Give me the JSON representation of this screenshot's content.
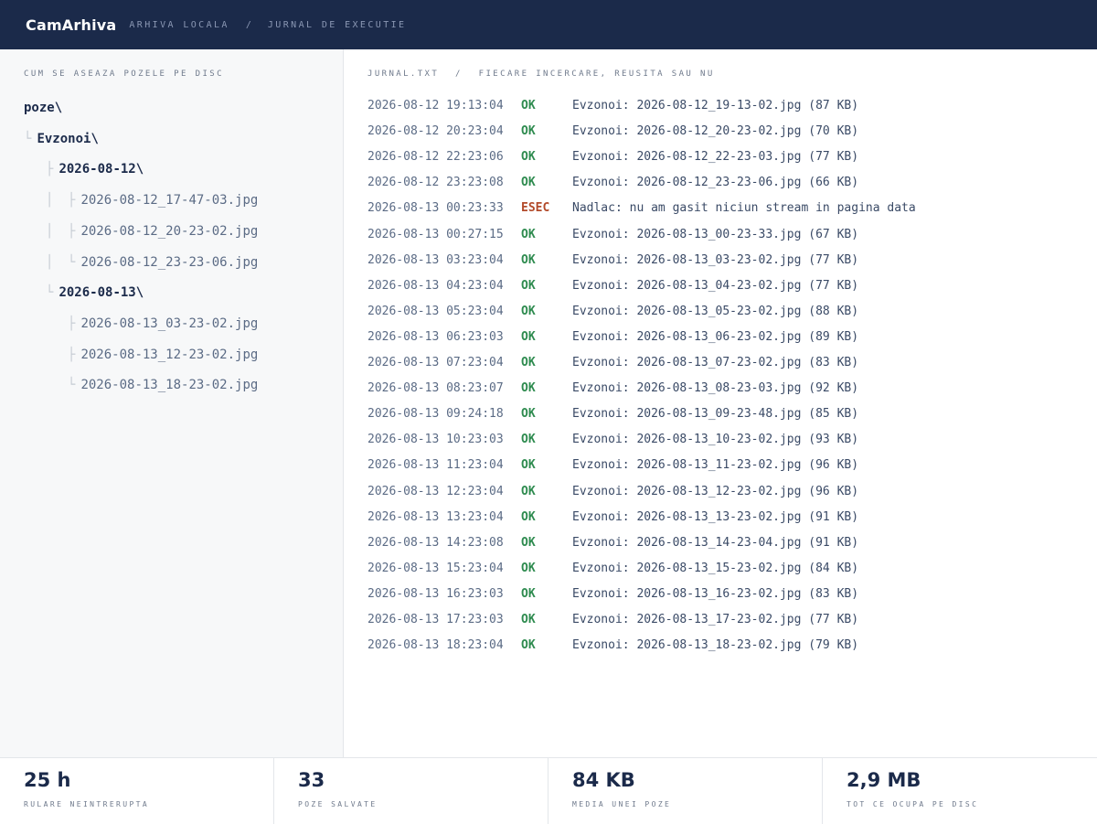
{
  "header": {
    "brand": "CamArhiva",
    "crumb1": "ARHIVA LOCALA",
    "separator": "/",
    "crumb2": "JURNAL DE EXECUTIE"
  },
  "sidebar": {
    "title": "CUM SE ASEAZA POZELE PE DISC",
    "tree": {
      "root": "poze\\",
      "folder": "Evzonoi\\",
      "dates": [
        {
          "label": "2026-08-12\\",
          "files": [
            "2026-08-12_17-47-03.jpg",
            "2026-08-12_20-23-02.jpg",
            "2026-08-12_23-23-06.jpg"
          ]
        },
        {
          "label": "2026-08-13\\",
          "files": [
            "2026-08-13_03-23-02.jpg",
            "2026-08-13_12-23-02.jpg",
            "2026-08-13_18-23-02.jpg"
          ]
        }
      ],
      "guides": {
        "tee": "├",
        "corner": "└",
        "pipe": "│"
      }
    }
  },
  "main": {
    "title_file": "JURNAL.TXT",
    "title_sep": "/",
    "title_desc": "FIECARE INCERCARE, REUSITA SAU NU",
    "log": [
      {
        "ts": "2026-08-12 19:13:04",
        "status": "OK",
        "msg": "Evzonoi: 2026-08-12_19-13-02.jpg (87 KB)"
      },
      {
        "ts": "2026-08-12 20:23:04",
        "status": "OK",
        "msg": "Evzonoi: 2026-08-12_20-23-02.jpg (70 KB)"
      },
      {
        "ts": "2026-08-12 22:23:06",
        "status": "OK",
        "msg": "Evzonoi: 2026-08-12_22-23-03.jpg (77 KB)"
      },
      {
        "ts": "2026-08-12 23:23:08",
        "status": "OK",
        "msg": "Evzonoi: 2026-08-12_23-23-06.jpg (66 KB)"
      },
      {
        "ts": "2026-08-13 00:23:33",
        "status": "ESEC",
        "msg": "Nadlac: nu am gasit niciun stream in pagina data"
      },
      {
        "ts": "2026-08-13 00:27:15",
        "status": "OK",
        "msg": "Evzonoi: 2026-08-13_00-23-33.jpg (67 KB)"
      },
      {
        "ts": "2026-08-13 03:23:04",
        "status": "OK",
        "msg": "Evzonoi: 2026-08-13_03-23-02.jpg (77 KB)"
      },
      {
        "ts": "2026-08-13 04:23:04",
        "status": "OK",
        "msg": "Evzonoi: 2026-08-13_04-23-02.jpg (77 KB)"
      },
      {
        "ts": "2026-08-13 05:23:04",
        "status": "OK",
        "msg": "Evzonoi: 2026-08-13_05-23-02.jpg (88 KB)"
      },
      {
        "ts": "2026-08-13 06:23:03",
        "status": "OK",
        "msg": "Evzonoi: 2026-08-13_06-23-02.jpg (89 KB)"
      },
      {
        "ts": "2026-08-13 07:23:04",
        "status": "OK",
        "msg": "Evzonoi: 2026-08-13_07-23-02.jpg (83 KB)"
      },
      {
        "ts": "2026-08-13 08:23:07",
        "status": "OK",
        "msg": "Evzonoi: 2026-08-13_08-23-03.jpg (92 KB)"
      },
      {
        "ts": "2026-08-13 09:24:18",
        "status": "OK",
        "msg": "Evzonoi: 2026-08-13_09-23-48.jpg (85 KB)"
      },
      {
        "ts": "2026-08-13 10:23:03",
        "status": "OK",
        "msg": "Evzonoi: 2026-08-13_10-23-02.jpg (93 KB)"
      },
      {
        "ts": "2026-08-13 11:23:04",
        "status": "OK",
        "msg": "Evzonoi: 2026-08-13_11-23-02.jpg (96 KB)"
      },
      {
        "ts": "2026-08-13 12:23:04",
        "status": "OK",
        "msg": "Evzonoi: 2026-08-13_12-23-02.jpg (96 KB)"
      },
      {
        "ts": "2026-08-13 13:23:04",
        "status": "OK",
        "msg": "Evzonoi: 2026-08-13_13-23-02.jpg (91 KB)"
      },
      {
        "ts": "2026-08-13 14:23:08",
        "status": "OK",
        "msg": "Evzonoi: 2026-08-13_14-23-04.jpg (91 KB)"
      },
      {
        "ts": "2026-08-13 15:23:04",
        "status": "OK",
        "msg": "Evzonoi: 2026-08-13_15-23-02.jpg (84 KB)"
      },
      {
        "ts": "2026-08-13 16:23:03",
        "status": "OK",
        "msg": "Evzonoi: 2026-08-13_16-23-02.jpg (83 KB)"
      },
      {
        "ts": "2026-08-13 17:23:03",
        "status": "OK",
        "msg": "Evzonoi: 2026-08-13_17-23-02.jpg (77 KB)"
      },
      {
        "ts": "2026-08-13 18:23:04",
        "status": "OK",
        "msg": "Evzonoi: 2026-08-13_18-23-02.jpg (79 KB)"
      }
    ]
  },
  "stats": [
    {
      "value": "25 h",
      "label": "RULARE NEINTRERUPTA"
    },
    {
      "value": "33",
      "label": "POZE SALVATE"
    },
    {
      "value": "84 KB",
      "label": "MEDIA UNEI POZE"
    },
    {
      "value": "2,9 MB",
      "label": "TOT CE OCUPA PE DISC"
    }
  ],
  "colors": {
    "header_bg": "#1b2a4a",
    "status_ok": "#2e8b4f",
    "status_esec": "#b24a2a"
  }
}
